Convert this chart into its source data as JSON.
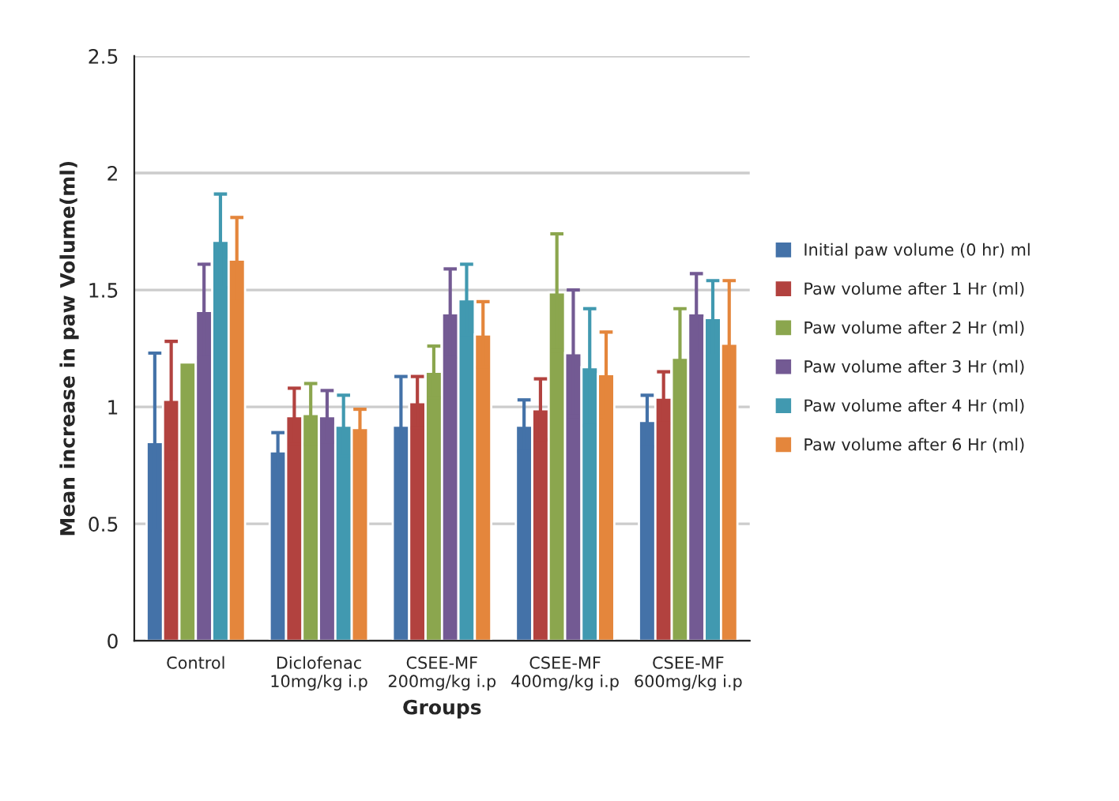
{
  "chart_data": {
    "type": "bar",
    "xlabel": "Groups",
    "ylabel": "Mean increase in paw Volume(ml)",
    "categories": [
      "Control",
      "Diclofenac\n10mg/kg i.p",
      "CSEE-MF\n200mg/kg i.p",
      "CSEE-MF\n400mg/kg i.p",
      "CSEE-MF\n600mg/kg i.p"
    ],
    "series": [
      {
        "name": "Initial paw volume (0 hr) ml",
        "color": "#4472a8",
        "values": [
          0.85,
          0.81,
          0.92,
          0.92,
          0.94
        ],
        "errors": [
          0.38,
          0.08,
          0.21,
          0.11,
          0.11
        ]
      },
      {
        "name": "Paw volume after 1 Hr (ml)",
        "color": "#b2423f",
        "values": [
          1.03,
          0.96,
          1.02,
          0.99,
          1.04
        ],
        "errors": [
          0.25,
          0.12,
          0.11,
          0.13,
          0.11
        ]
      },
      {
        "name": "Paw volume after 2 Hr (ml)",
        "color": "#8ba64e",
        "values": [
          1.19,
          0.97,
          1.15,
          1.49,
          1.21
        ],
        "errors": [
          null,
          0.13,
          0.11,
          0.25,
          0.21
        ]
      },
      {
        "name": "Paw volume after 3 Hr (ml)",
        "color": "#735a93",
        "values": [
          1.41,
          0.96,
          1.4,
          1.23,
          1.4
        ],
        "errors": [
          0.2,
          0.11,
          0.19,
          0.27,
          0.17
        ]
      },
      {
        "name": "Paw volume after 4 Hr (ml)",
        "color": "#4199b0",
        "values": [
          1.71,
          0.92,
          1.46,
          1.17,
          1.38
        ],
        "errors": [
          0.2,
          0.13,
          0.15,
          0.25,
          0.16
        ]
      },
      {
        "name": "Paw volume after 6 Hr (ml)",
        "color": "#e4863c",
        "values": [
          1.63,
          0.91,
          1.31,
          1.14,
          1.27
        ],
        "errors": [
          0.18,
          0.08,
          0.14,
          0.18,
          0.27
        ]
      }
    ],
    "ylim": [
      0,
      2.5
    ],
    "yticks": [
      0,
      0.5,
      1,
      1.5,
      2,
      2.5
    ],
    "grid": "y",
    "legend": "right"
  }
}
